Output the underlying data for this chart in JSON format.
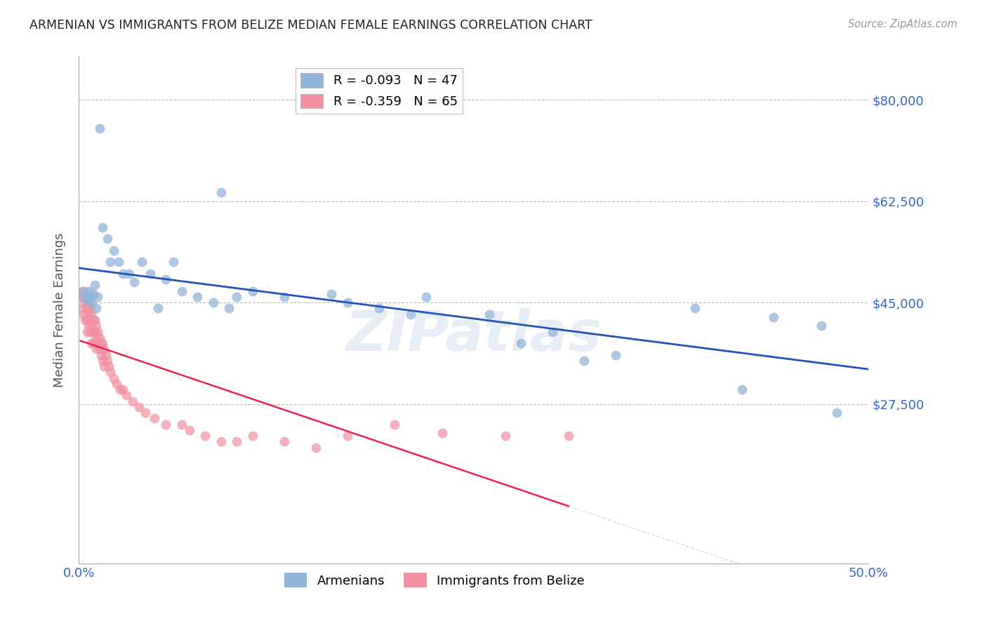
{
  "title": "ARMENIAN VS IMMIGRANTS FROM BELIZE MEDIAN FEMALE EARNINGS CORRELATION CHART",
  "source": "Source: ZipAtlas.com",
  "ylabel": "Median Female Earnings",
  "yticks": [
    0,
    27500,
    45000,
    62500,
    80000
  ],
  "ytick_labels": [
    "",
    "$27,500",
    "$45,000",
    "$62,500",
    "$80,000"
  ],
  "ymin": 0,
  "ymax": 87500,
  "xmin": 0.0,
  "xmax": 0.5,
  "blue_color": "#92B4D8",
  "blue_line_color": "#2255BB",
  "pink_color": "#F090A0",
  "pink_line_color": "#EE2255",
  "background_color": "#FFFFFF",
  "grid_color": "#BBBBBB",
  "legend_R1": "R = -0.093",
  "legend_N1": "N = 47",
  "legend_R2": "R = -0.359",
  "legend_N2": "N = 65",
  "title_color": "#222222",
  "axis_label_color": "#3366CC",
  "watermark": "ZIPatlas",
  "armenians_x": [
    0.003,
    0.004,
    0.005,
    0.006,
    0.007,
    0.008,
    0.009,
    0.01,
    0.011,
    0.012,
    0.013,
    0.015,
    0.018,
    0.02,
    0.022,
    0.025,
    0.028,
    0.032,
    0.035,
    0.04,
    0.045,
    0.05,
    0.055,
    0.06,
    0.065,
    0.075,
    0.085,
    0.09,
    0.1,
    0.11,
    0.13,
    0.16,
    0.19,
    0.22,
    0.26,
    0.3,
    0.34,
    0.39,
    0.44,
    0.47,
    0.095,
    0.17,
    0.21,
    0.28,
    0.32,
    0.42,
    0.48
  ],
  "armenians_y": [
    47000,
    46000,
    45500,
    47000,
    46000,
    45000,
    46500,
    48000,
    44000,
    46000,
    75000,
    58000,
    56000,
    52000,
    54000,
    52000,
    50000,
    50000,
    48500,
    52000,
    50000,
    44000,
    49000,
    52000,
    47000,
    46000,
    45000,
    64000,
    46000,
    47000,
    46000,
    46500,
    44000,
    46000,
    43000,
    40000,
    36000,
    44000,
    42500,
    41000,
    44000,
    45000,
    43000,
    38000,
    35000,
    30000,
    26000
  ],
  "belize_x": [
    0.001,
    0.002,
    0.002,
    0.003,
    0.003,
    0.004,
    0.004,
    0.005,
    0.005,
    0.005,
    0.006,
    0.006,
    0.006,
    0.007,
    0.007,
    0.007,
    0.008,
    0.008,
    0.008,
    0.009,
    0.009,
    0.009,
    0.01,
    0.01,
    0.01,
    0.011,
    0.011,
    0.011,
    0.012,
    0.012,
    0.013,
    0.013,
    0.014,
    0.014,
    0.015,
    0.015,
    0.016,
    0.016,
    0.017,
    0.018,
    0.019,
    0.02,
    0.022,
    0.024,
    0.026,
    0.028,
    0.03,
    0.034,
    0.038,
    0.042,
    0.048,
    0.055,
    0.065,
    0.07,
    0.08,
    0.09,
    0.1,
    0.11,
    0.13,
    0.15,
    0.17,
    0.2,
    0.23,
    0.27,
    0.31
  ],
  "belize_y": [
    46000,
    47000,
    44000,
    46000,
    43000,
    45000,
    42000,
    44000,
    42000,
    40000,
    45000,
    43000,
    41000,
    44000,
    42000,
    40000,
    43000,
    41000,
    38000,
    42000,
    40000,
    38000,
    42000,
    40000,
    38000,
    41000,
    39000,
    37000,
    40000,
    38000,
    39000,
    37000,
    38000,
    36000,
    38000,
    35000,
    37000,
    34000,
    36000,
    35000,
    34000,
    33000,
    32000,
    31000,
    30000,
    30000,
    29000,
    28000,
    27000,
    26000,
    25000,
    24000,
    24000,
    23000,
    22000,
    21000,
    21000,
    22000,
    21000,
    20000,
    22000,
    24000,
    22500,
    22000,
    22000
  ]
}
